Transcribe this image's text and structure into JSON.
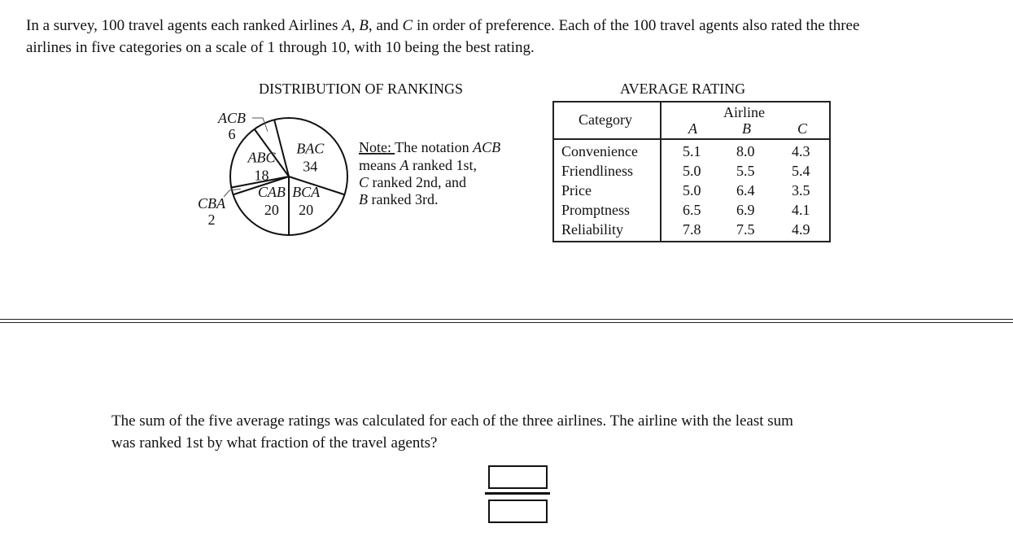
{
  "question": {
    "intro_line1_parts": [
      "In a survey, 100 travel agents each ranked Airlines ",
      "A",
      ", ",
      "B",
      ", and ",
      "C",
      " in order of preference. Each of the 100 travel agents also rated the three"
    ],
    "intro_line2": "airlines in five categories on a scale of 1 through 10, with 10 being the best rating.",
    "prompt_line1": "The sum of the five average ratings was calculated for each of the three airlines. The airline with the least sum",
    "prompt_line2": "was ranked 1st by what fraction of the travel agents?"
  },
  "chart_data": {
    "type": "pie",
    "title": "DISTRIBUTION OF RANKINGS",
    "slices": [
      {
        "label": "BAC",
        "value": 34
      },
      {
        "label": "BCA",
        "value": 20
      },
      {
        "label": "CAB",
        "value": 20
      },
      {
        "label": "CBA",
        "value": 2
      },
      {
        "label": "ABC",
        "value": 18
      },
      {
        "label": "ACB",
        "value": 6
      }
    ],
    "note": {
      "underlined": "Note:",
      "lines": [
        "The notation ACB",
        "means A ranked 1st,",
        "C ranked 2nd, and",
        "B ranked 3rd."
      ]
    }
  },
  "table": {
    "title": "AVERAGE RATING",
    "category_header": "Category",
    "group_header": "Airline",
    "columns": [
      "A",
      "B",
      "C"
    ],
    "rows": [
      {
        "category": "Convenience",
        "values": [
          "5.1",
          "8.0",
          "4.3"
        ]
      },
      {
        "category": "Friendliness",
        "values": [
          "5.0",
          "5.5",
          "5.4"
        ]
      },
      {
        "category": "Price",
        "values": [
          "5.0",
          "6.4",
          "3.5"
        ]
      },
      {
        "category": "Promptness",
        "values": [
          "6.5",
          "6.9",
          "4.1"
        ]
      },
      {
        "category": "Reliability",
        "values": [
          "7.8",
          "7.5",
          "4.9"
        ]
      }
    ]
  },
  "answer": {
    "numerator": "",
    "denominator": ""
  }
}
